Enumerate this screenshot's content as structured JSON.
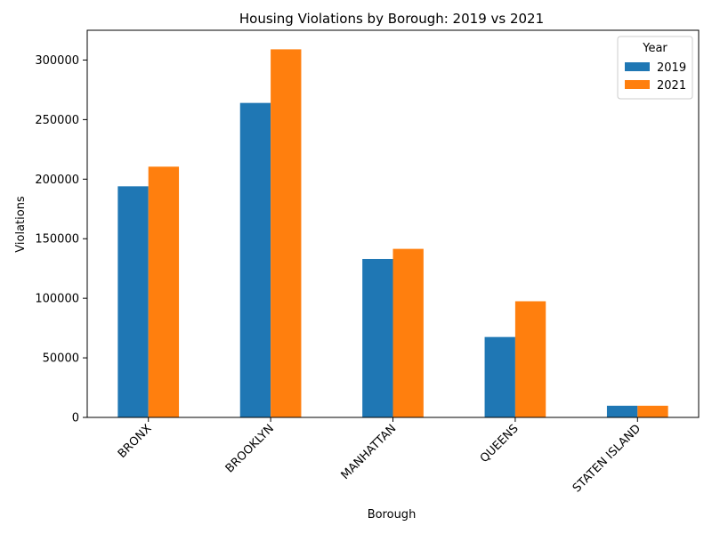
{
  "chart_data": {
    "type": "bar",
    "title": "Housing Violations by Borough: 2019 vs 2021",
    "xlabel": "Borough",
    "ylabel": "Violations",
    "categories": [
      "BRONX",
      "BROOKLYN",
      "MANHATTAN",
      "QUEENS",
      "STATEN ISLAND"
    ],
    "series": [
      {
        "name": "2019",
        "color": "#1f77b4",
        "values": [
          194000,
          264000,
          133000,
          67500,
          9800
        ]
      },
      {
        "name": "2021",
        "color": "#ff7f0e",
        "values": [
          210500,
          309000,
          141500,
          97500,
          9800
        ]
      }
    ],
    "ylim": [
      0,
      325000
    ],
    "yticks": [
      0,
      50000,
      100000,
      150000,
      200000,
      250000,
      300000
    ],
    "ytick_labels": [
      "0",
      "50000",
      "100000",
      "150000",
      "200000",
      "250000",
      "300000"
    ],
    "grid": false,
    "legend": {
      "title": "Year",
      "placement": "top-right"
    }
  }
}
